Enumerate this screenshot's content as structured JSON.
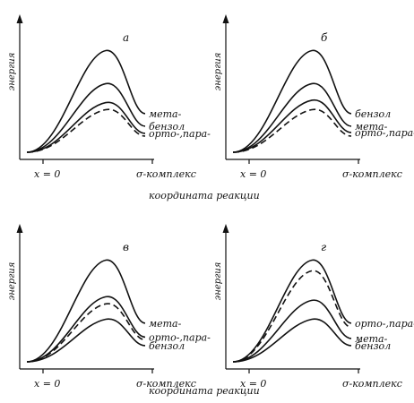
{
  "figure": {
    "xlabel": "координата реакции",
    "ylabel": "энергия",
    "x_start_label": "x = 0",
    "x_end_label": "σ-комплекс"
  },
  "chart_data": [
    {
      "type": "line",
      "panel": "а",
      "xlabel": "координата реакции",
      "ylabel": "энергия",
      "series": [
        {
          "name": "мета-",
          "peak": 0.86,
          "style": "solid"
        },
        {
          "name": "бензол",
          "peak": 0.58,
          "style": "solid"
        },
        {
          "name": "орто-,пара-",
          "peak": 0.42,
          "style": "solid"
        },
        {
          "name": "",
          "peak": 0.36,
          "style": "dashed"
        }
      ]
    },
    {
      "type": "line",
      "panel": "б",
      "xlabel": "координата реакции",
      "ylabel": "энергия",
      "series": [
        {
          "name": "бензол",
          "peak": 0.86,
          "style": "solid"
        },
        {
          "name": "мета-",
          "peak": 0.58,
          "style": "solid"
        },
        {
          "name": "орто-,пара-",
          "peak": 0.44,
          "style": "solid"
        },
        {
          "name": "",
          "peak": 0.36,
          "style": "dashed"
        }
      ]
    },
    {
      "type": "line",
      "panel": "в",
      "xlabel": "координата реакции",
      "ylabel": "энергия",
      "series": [
        {
          "name": "мета-",
          "peak": 0.86,
          "style": "solid"
        },
        {
          "name": "орто-,пара-",
          "peak": 0.55,
          "style": "solid"
        },
        {
          "name": "",
          "peak": 0.49,
          "style": "dashed"
        },
        {
          "name": "бензол",
          "peak": 0.36,
          "style": "solid"
        }
      ]
    },
    {
      "type": "line",
      "panel": "г",
      "xlabel": "координата реакции",
      "ylabel": "энергия",
      "series": [
        {
          "name": "орто-,пара-",
          "peak": 0.86,
          "style": "solid"
        },
        {
          "name": "",
          "peak": 0.77,
          "style": "dashed"
        },
        {
          "name": "мета-",
          "peak": 0.52,
          "style": "solid"
        },
        {
          "name": "бензол",
          "peak": 0.36,
          "style": "solid"
        }
      ]
    }
  ]
}
